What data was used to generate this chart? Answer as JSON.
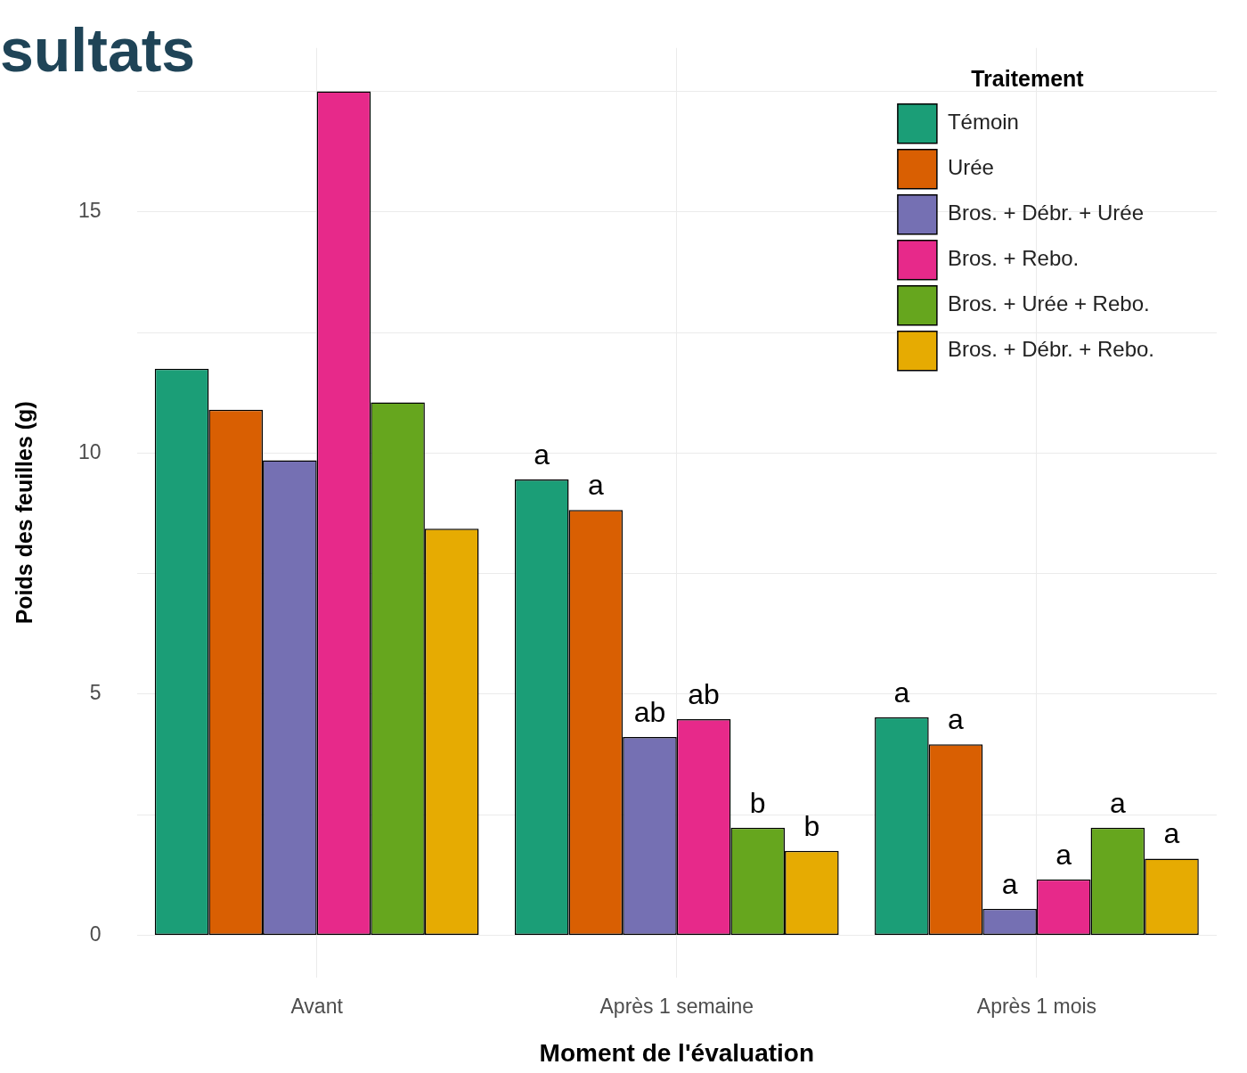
{
  "chart_data": {
    "type": "bar",
    "title": "sultats",
    "xlabel": "Moment de l'évaluation",
    "ylabel": "Poids des feuilles (g)",
    "legend_title": "Traitement",
    "legend": "top right",
    "grid": true,
    "categories": [
      "Avant",
      "Après 1 semaine",
      "Après 1 mois"
    ],
    "ylim": [
      -0.875,
      18.4
    ],
    "yticks": [
      0,
      {
        "value": 2.5,
        "label": null
      },
      5,
      {
        "value": 7.5,
        "label": null
      },
      10,
      {
        "value": 12.5,
        "label": null
      },
      15,
      {
        "value": 17.5,
        "label": null
      }
    ],
    "series": [
      {
        "name": "Témoin",
        "color": "#1b9e77",
        "values": [
          11.75,
          9.45,
          4.52
        ],
        "value_labels": [
          null,
          "a",
          "a"
        ]
      },
      {
        "name": "Urée",
        "color": "#d95f02",
        "values": [
          10.9,
          8.82,
          3.96
        ],
        "value_labels": [
          null,
          "a",
          "a"
        ]
      },
      {
        "name": "Bros. + Débr. + Urée",
        "color": "#7570b3",
        "values": [
          9.85,
          4.11,
          0.55
        ],
        "value_labels": [
          null,
          "ab",
          "a"
        ]
      },
      {
        "name": "Bros. + Rebo.",
        "color": "#e7298a",
        "values": [
          17.5,
          4.48,
          1.16
        ],
        "value_labels": [
          null,
          "ab",
          "a"
        ]
      },
      {
        "name": "Bros. + Urée + Rebo.",
        "color": "#66a61e",
        "values": [
          11.05,
          2.23,
          2.23
        ],
        "value_labels": [
          null,
          "b",
          "a"
        ]
      },
      {
        "name": "Bros. + Débr. + Rebo.",
        "color": "#e6ab02",
        "values": [
          8.43,
          1.75,
          1.59
        ],
        "value_labels": [
          null,
          "b",
          "a"
        ]
      }
    ]
  }
}
